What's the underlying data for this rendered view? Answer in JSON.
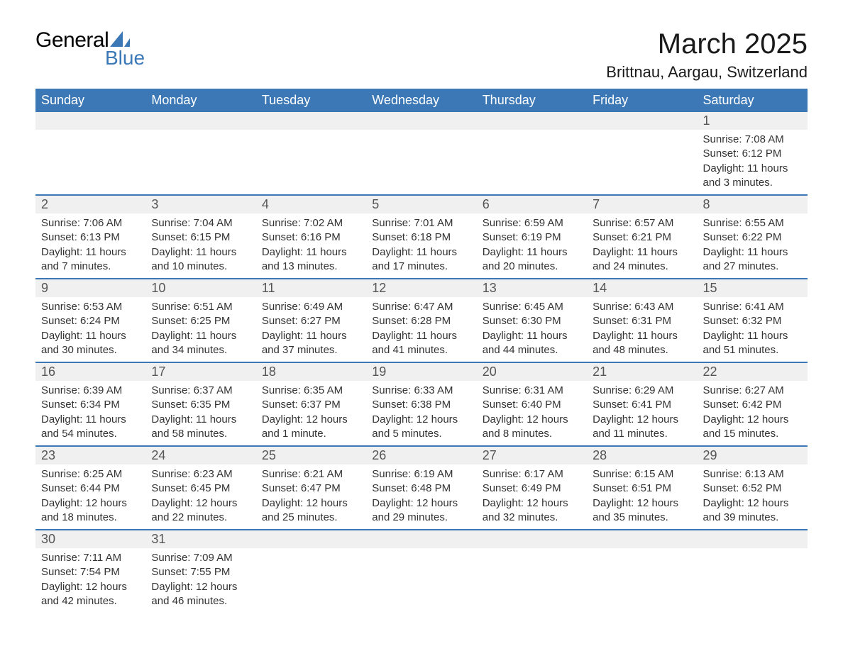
{
  "logo": {
    "text1": "General",
    "text2": "Blue",
    "shape_color": "#3b78b5"
  },
  "title": "March 2025",
  "location": "Brittnau, Aargau, Switzerland",
  "colors": {
    "header_bg": "#3b78b5",
    "header_text": "#ffffff",
    "daynum_bg": "#f0f0f0",
    "border": "#3b78b5",
    "body_text": "#333333",
    "daynum_text": "#555555"
  },
  "weekdays": [
    "Sunday",
    "Monday",
    "Tuesday",
    "Wednesday",
    "Thursday",
    "Friday",
    "Saturday"
  ],
  "weeks": [
    [
      null,
      null,
      null,
      null,
      null,
      null,
      {
        "n": "1",
        "sunrise": "7:08 AM",
        "sunset": "6:12 PM",
        "daylight1": "11 hours",
        "daylight2": "and 3 minutes."
      }
    ],
    [
      {
        "n": "2",
        "sunrise": "7:06 AM",
        "sunset": "6:13 PM",
        "daylight1": "11 hours",
        "daylight2": "and 7 minutes."
      },
      {
        "n": "3",
        "sunrise": "7:04 AM",
        "sunset": "6:15 PM",
        "daylight1": "11 hours",
        "daylight2": "and 10 minutes."
      },
      {
        "n": "4",
        "sunrise": "7:02 AM",
        "sunset": "6:16 PM",
        "daylight1": "11 hours",
        "daylight2": "and 13 minutes."
      },
      {
        "n": "5",
        "sunrise": "7:01 AM",
        "sunset": "6:18 PM",
        "daylight1": "11 hours",
        "daylight2": "and 17 minutes."
      },
      {
        "n": "6",
        "sunrise": "6:59 AM",
        "sunset": "6:19 PM",
        "daylight1": "11 hours",
        "daylight2": "and 20 minutes."
      },
      {
        "n": "7",
        "sunrise": "6:57 AM",
        "sunset": "6:21 PM",
        "daylight1": "11 hours",
        "daylight2": "and 24 minutes."
      },
      {
        "n": "8",
        "sunrise": "6:55 AM",
        "sunset": "6:22 PM",
        "daylight1": "11 hours",
        "daylight2": "and 27 minutes."
      }
    ],
    [
      {
        "n": "9",
        "sunrise": "6:53 AM",
        "sunset": "6:24 PM",
        "daylight1": "11 hours",
        "daylight2": "and 30 minutes."
      },
      {
        "n": "10",
        "sunrise": "6:51 AM",
        "sunset": "6:25 PM",
        "daylight1": "11 hours",
        "daylight2": "and 34 minutes."
      },
      {
        "n": "11",
        "sunrise": "6:49 AM",
        "sunset": "6:27 PM",
        "daylight1": "11 hours",
        "daylight2": "and 37 minutes."
      },
      {
        "n": "12",
        "sunrise": "6:47 AM",
        "sunset": "6:28 PM",
        "daylight1": "11 hours",
        "daylight2": "and 41 minutes."
      },
      {
        "n": "13",
        "sunrise": "6:45 AM",
        "sunset": "6:30 PM",
        "daylight1": "11 hours",
        "daylight2": "and 44 minutes."
      },
      {
        "n": "14",
        "sunrise": "6:43 AM",
        "sunset": "6:31 PM",
        "daylight1": "11 hours",
        "daylight2": "and 48 minutes."
      },
      {
        "n": "15",
        "sunrise": "6:41 AM",
        "sunset": "6:32 PM",
        "daylight1": "11 hours",
        "daylight2": "and 51 minutes."
      }
    ],
    [
      {
        "n": "16",
        "sunrise": "6:39 AM",
        "sunset": "6:34 PM",
        "daylight1": "11 hours",
        "daylight2": "and 54 minutes."
      },
      {
        "n": "17",
        "sunrise": "6:37 AM",
        "sunset": "6:35 PM",
        "daylight1": "11 hours",
        "daylight2": "and 58 minutes."
      },
      {
        "n": "18",
        "sunrise": "6:35 AM",
        "sunset": "6:37 PM",
        "daylight1": "12 hours",
        "daylight2": "and 1 minute."
      },
      {
        "n": "19",
        "sunrise": "6:33 AM",
        "sunset": "6:38 PM",
        "daylight1": "12 hours",
        "daylight2": "and 5 minutes."
      },
      {
        "n": "20",
        "sunrise": "6:31 AM",
        "sunset": "6:40 PM",
        "daylight1": "12 hours",
        "daylight2": "and 8 minutes."
      },
      {
        "n": "21",
        "sunrise": "6:29 AM",
        "sunset": "6:41 PM",
        "daylight1": "12 hours",
        "daylight2": "and 11 minutes."
      },
      {
        "n": "22",
        "sunrise": "6:27 AM",
        "sunset": "6:42 PM",
        "daylight1": "12 hours",
        "daylight2": "and 15 minutes."
      }
    ],
    [
      {
        "n": "23",
        "sunrise": "6:25 AM",
        "sunset": "6:44 PM",
        "daylight1": "12 hours",
        "daylight2": "and 18 minutes."
      },
      {
        "n": "24",
        "sunrise": "6:23 AM",
        "sunset": "6:45 PM",
        "daylight1": "12 hours",
        "daylight2": "and 22 minutes."
      },
      {
        "n": "25",
        "sunrise": "6:21 AM",
        "sunset": "6:47 PM",
        "daylight1": "12 hours",
        "daylight2": "and 25 minutes."
      },
      {
        "n": "26",
        "sunrise": "6:19 AM",
        "sunset": "6:48 PM",
        "daylight1": "12 hours",
        "daylight2": "and 29 minutes."
      },
      {
        "n": "27",
        "sunrise": "6:17 AM",
        "sunset": "6:49 PM",
        "daylight1": "12 hours",
        "daylight2": "and 32 minutes."
      },
      {
        "n": "28",
        "sunrise": "6:15 AM",
        "sunset": "6:51 PM",
        "daylight1": "12 hours",
        "daylight2": "and 35 minutes."
      },
      {
        "n": "29",
        "sunrise": "6:13 AM",
        "sunset": "6:52 PM",
        "daylight1": "12 hours",
        "daylight2": "and 39 minutes."
      }
    ],
    [
      {
        "n": "30",
        "sunrise": "7:11 AM",
        "sunset": "7:54 PM",
        "daylight1": "12 hours",
        "daylight2": "and 42 minutes."
      },
      {
        "n": "31",
        "sunrise": "7:09 AM",
        "sunset": "7:55 PM",
        "daylight1": "12 hours",
        "daylight2": "and 46 minutes."
      },
      null,
      null,
      null,
      null,
      null
    ]
  ],
  "labels": {
    "sunrise": "Sunrise: ",
    "sunset": "Sunset: ",
    "daylight": "Daylight: "
  }
}
